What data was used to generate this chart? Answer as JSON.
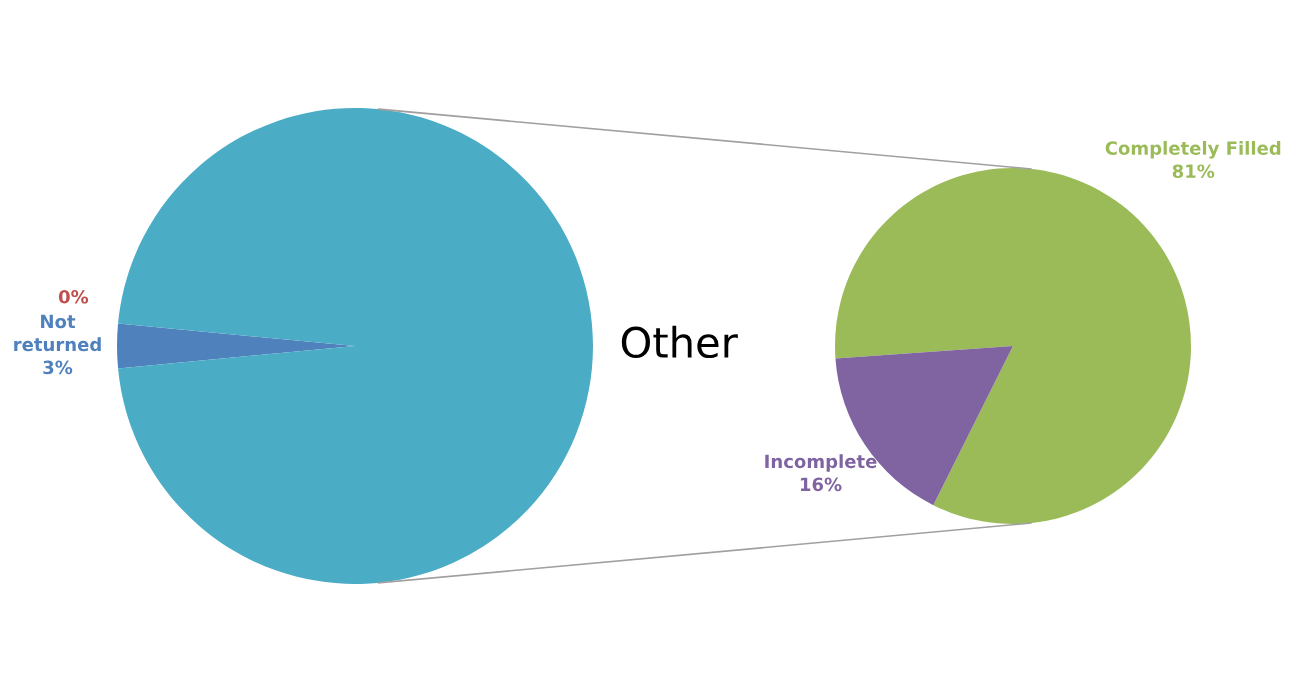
{
  "chart_data": [
    {
      "type": "pie",
      "categories": [
        "Not returned",
        null,
        "Other"
      ],
      "values": [
        3,
        0,
        97
      ],
      "colors": [
        "#4f81bd",
        "#c0504d",
        "#4bacc6"
      ],
      "value_labels": [
        "3%",
        "0%",
        null
      ]
    },
    {
      "type": "pie",
      "categories": [
        "Completely Filled",
        "Incomplete"
      ],
      "values": [
        81,
        16
      ],
      "colors": [
        "#9bbb59",
        "#8064a2"
      ],
      "value_labels": [
        "81%",
        "16%"
      ]
    }
  ]
}
